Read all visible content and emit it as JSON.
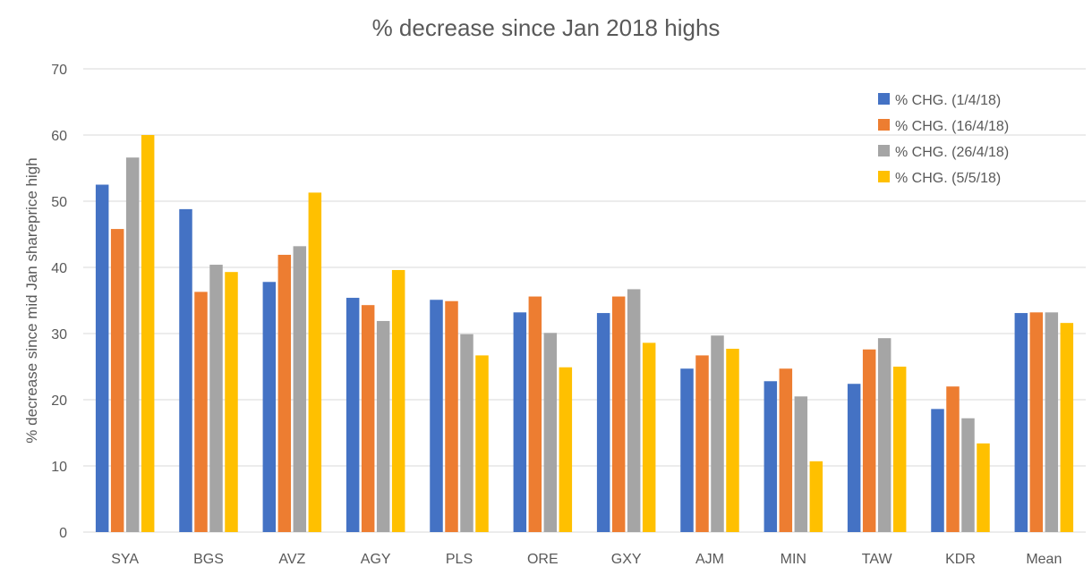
{
  "chart_data": {
    "type": "bar",
    "title": "% decrease since Jan 2018 highs",
    "xlabel": "",
    "ylabel": "% decrease since mid Jan shareprice high",
    "ylim": [
      0,
      70
    ],
    "yticks": [
      0,
      10,
      20,
      30,
      40,
      50,
      60,
      70
    ],
    "grid": true,
    "legend_position": "top-right",
    "categories": [
      "SYA",
      "BGS",
      "AVZ",
      "AGY",
      "PLS",
      "ORE",
      "GXY",
      "AJM",
      "MIN",
      "TAW",
      "KDR",
      "Mean"
    ],
    "series": [
      {
        "name": "% CHG. (1/4/18)",
        "color": "#4472C4",
        "values": [
          52.5,
          48.8,
          37.8,
          35.4,
          35.1,
          33.2,
          33.1,
          24.7,
          22.8,
          22.4,
          18.6,
          33.1
        ]
      },
      {
        "name": "% CHG. (16/4/18)",
        "color": "#ED7D31",
        "values": [
          45.8,
          36.3,
          41.9,
          34.3,
          34.9,
          35.6,
          35.6,
          26.7,
          24.7,
          27.6,
          22.0,
          33.2
        ]
      },
      {
        "name": "% CHG. (26/4/18)",
        "color": "#A5A5A5",
        "values": [
          56.6,
          40.4,
          43.2,
          31.9,
          29.9,
          30.1,
          36.7,
          29.7,
          20.5,
          29.3,
          17.2,
          33.2
        ]
      },
      {
        "name": "% CHG. (5/5/18)",
        "color": "#FFC000",
        "values": [
          60.0,
          39.3,
          51.3,
          39.6,
          26.7,
          24.9,
          28.6,
          27.7,
          10.7,
          25.0,
          13.4,
          31.6
        ]
      }
    ]
  }
}
